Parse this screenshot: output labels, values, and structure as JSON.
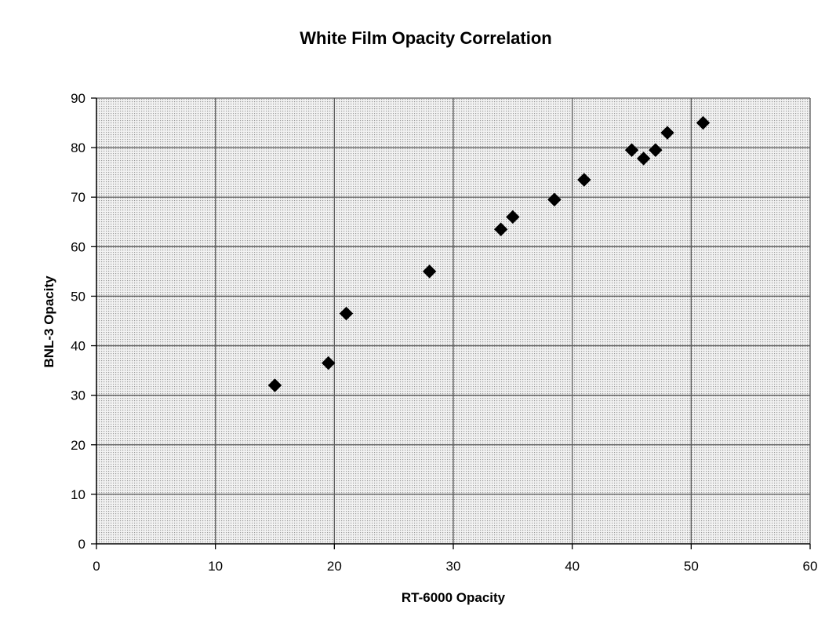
{
  "chart_data": {
    "type": "scatter",
    "title": "White Film Opacity Correlation",
    "xlabel": "RT-6000 Opacity",
    "ylabel": "BNL-3 Opacity",
    "xlim": [
      0,
      60
    ],
    "ylim": [
      0,
      90
    ],
    "x_ticks": [
      "0",
      "10",
      "20",
      "30",
      "40",
      "50",
      "60"
    ],
    "y_ticks": [
      "0",
      "10",
      "20",
      "30",
      "40",
      "50",
      "60",
      "70",
      "80",
      "90"
    ],
    "grid": true,
    "legend": "none",
    "marker": "diamond",
    "marker_color": "#000000",
    "points": [
      {
        "x": 15,
        "y": 32
      },
      {
        "x": 19.5,
        "y": 36.5
      },
      {
        "x": 21,
        "y": 46.5
      },
      {
        "x": 28,
        "y": 55
      },
      {
        "x": 34,
        "y": 63.5
      },
      {
        "x": 35,
        "y": 66
      },
      {
        "x": 38.5,
        "y": 69.5
      },
      {
        "x": 41,
        "y": 73.5
      },
      {
        "x": 45,
        "y": 79.5
      },
      {
        "x": 46,
        "y": 77.8
      },
      {
        "x": 47,
        "y": 79.5
      },
      {
        "x": 48,
        "y": 83
      },
      {
        "x": 51,
        "y": 85
      }
    ]
  }
}
